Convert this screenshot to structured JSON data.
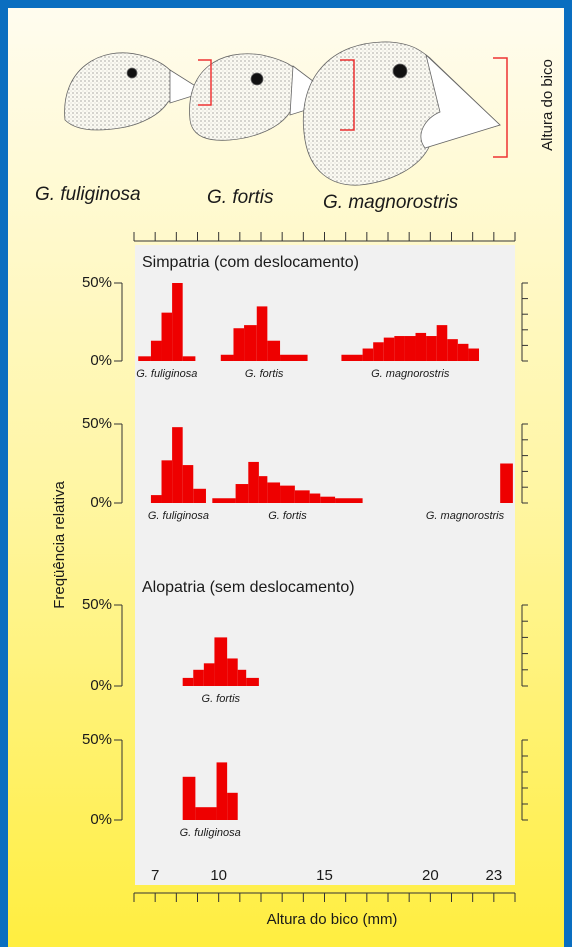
{
  "species_labels": [
    "G. fuliginosa",
    "G. fortis",
    "G. magnorostris"
  ],
  "beak_label": "Altura do bico",
  "axes": {
    "xlabel": "Altura do bico (mm)",
    "ylabel": "Freqüência relativa",
    "xlim": [
      6,
      24
    ],
    "xticks": [
      7,
      10,
      15,
      20,
      23
    ],
    "minor_xticks": [
      6,
      7,
      8,
      9,
      10,
      11,
      12,
      13,
      14,
      15,
      16,
      17,
      18,
      19,
      20,
      21,
      22,
      23,
      24
    ]
  },
  "chart_data": [
    {
      "type": "histogram",
      "title": "Simpatria (com deslocamento)",
      "ylim": [
        0,
        50
      ],
      "yticks": [
        {
          "value": 50,
          "label": "50%"
        },
        {
          "value": 0,
          "label": "0%"
        }
      ],
      "minor_yticks": [
        0,
        10,
        20,
        30,
        40,
        50
      ],
      "series": [
        {
          "name": "G. fuliginosa",
          "color": "#ee0000",
          "bins": [
            6.2,
            6.8,
            7.3,
            7.8,
            8.3,
            8.9
          ],
          "values": [
            3,
            13,
            31,
            50,
            3
          ]
        },
        {
          "name": "G. fortis",
          "color": "#ee0000",
          "bins": [
            10.1,
            10.7,
            11.2,
            11.8,
            12.3,
            12.9,
            14.2
          ],
          "values": [
            4,
            21,
            23,
            35,
            13,
            4
          ]
        },
        {
          "name": "G. magnorostris",
          "color": "#ee0000",
          "bins": [
            15.8,
            16.8,
            17.3,
            17.8,
            18.3,
            18.8,
            19.3,
            19.8,
            20.3,
            20.8,
            21.3,
            21.8,
            22.3
          ],
          "values": [
            4,
            8,
            12,
            15,
            16,
            16,
            18,
            16,
            23,
            14,
            11,
            8
          ]
        }
      ]
    },
    {
      "type": "histogram",
      "ylim": [
        0,
        50
      ],
      "yticks": [
        {
          "value": 50,
          "label": "50%"
        },
        {
          "value": 0,
          "label": "0%"
        }
      ],
      "minor_yticks": [
        0,
        10,
        20,
        30,
        40,
        50
      ],
      "series": [
        {
          "name": "G. fuliginosa",
          "color": "#ee0000",
          "bins": [
            6.8,
            7.3,
            7.8,
            8.3,
            8.8,
            9.4
          ],
          "values": [
            5,
            27,
            48,
            24,
            9
          ]
        },
        {
          "name": "G. fortis",
          "color": "#ee0000",
          "bins": [
            9.7,
            10.8,
            11.4,
            11.9,
            12.3,
            12.9,
            13.6,
            14.3,
            14.8,
            15.5,
            16.8
          ],
          "values": [
            3,
            12,
            26,
            17,
            13,
            11,
            8,
            6,
            4,
            3
          ]
        },
        {
          "name": "G. magnorostris",
          "color": "#ee0000",
          "bins": [
            23.3,
            23.9
          ],
          "values": [
            25
          ]
        }
      ]
    },
    {
      "type": "histogram",
      "title": "Alopatria (sem deslocamento)",
      "ylim": [
        0,
        50
      ],
      "yticks": [
        {
          "value": 50,
          "label": "50%"
        },
        {
          "value": 0,
          "label": "0%"
        }
      ],
      "minor_yticks": [
        0,
        10,
        20,
        30,
        40,
        50
      ],
      "series": [
        {
          "name": "G. fortis",
          "color": "#ee0000",
          "bins": [
            8.3,
            8.8,
            9.3,
            9.8,
            10.4,
            10.9,
            11.3,
            11.9
          ],
          "values": [
            5,
            10,
            14,
            30,
            17,
            10,
            5
          ]
        }
      ]
    },
    {
      "type": "histogram",
      "ylim": [
        0,
        50
      ],
      "yticks": [
        {
          "value": 50,
          "label": "50%"
        },
        {
          "value": 0,
          "label": "0%"
        }
      ],
      "minor_yticks": [
        0,
        10,
        20,
        30,
        40,
        50
      ],
      "series": [
        {
          "name": "G. fuliginosa",
          "color": "#ee0000",
          "bins": [
            8.3,
            8.9,
            9.9,
            10.4,
            10.9
          ],
          "values": [
            27,
            8,
            36,
            17
          ]
        }
      ]
    }
  ]
}
